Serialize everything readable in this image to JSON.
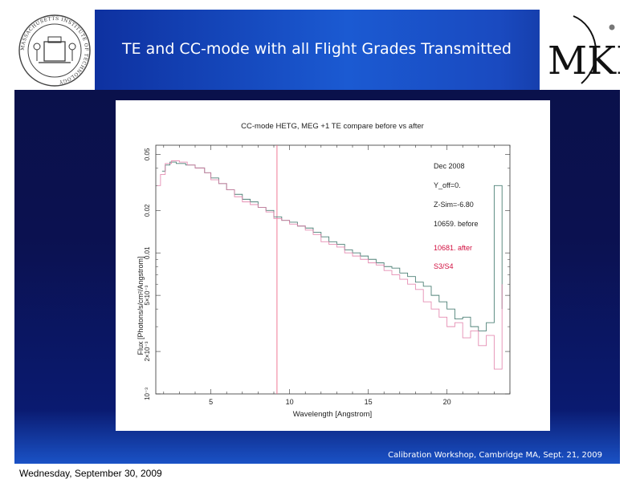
{
  "slide": {
    "title": "TE and CC-mode with all Flight Grades Transmitted",
    "footer": "Calibration Workshop, Cambridge MA, Sept. 21, 2009",
    "date_stamp": "Wednesday, September 30, 2009",
    "mit_seal_text": "MASSACHUSETTS INSTITUTE OF TECHNOLOGY",
    "mki_logo_text": "MKI"
  },
  "colors": {
    "before": "#2f6b5f",
    "after": "#e07aa6",
    "reference_line": "#ee6b8a",
    "after_label": "#d21040"
  },
  "chart_data": {
    "type": "line",
    "title": "CC-mode HETG, MEG +1 TE compare before vs after",
    "xlabel": "Wavelength [Angstrom]",
    "ylabel": "Flux [Photons/s/cm²/Angstrom]",
    "xlim": [
      1.5,
      24.0
    ],
    "ylim": [
      0.001,
      0.058
    ],
    "yscale": "log",
    "x_ticks": [
      5,
      10,
      15,
      20
    ],
    "y_ticks": [
      {
        "value": 0.001,
        "label": "10⁻³"
      },
      {
        "value": 0.002,
        "label": "2×10⁻³"
      },
      {
        "value": 0.005,
        "label": "5×10⁻³"
      },
      {
        "value": 0.01,
        "label": "0.01"
      },
      {
        "value": 0.02,
        "label": "0.02"
      },
      {
        "value": 0.05,
        "label": "0.05"
      }
    ],
    "reference_line_x": 9.2,
    "annotations": [
      "Dec 2008",
      "Y_off=0.",
      "Z-Sim=-6.80",
      "10659. before"
    ],
    "after_annotations": [
      "10681. after",
      "S3/S4"
    ],
    "series": [
      {
        "name": "10659. before",
        "x": [
          1.9,
          2.1,
          2.4,
          2.8,
          3.0,
          3.4,
          4.0,
          4.6,
          5.0,
          5.5,
          6.0,
          6.5,
          7.0,
          7.5,
          8.0,
          8.5,
          9.0,
          9.5,
          10.0,
          10.5,
          11.0,
          11.5,
          12.0,
          12.5,
          13.0,
          13.5,
          14.0,
          14.5,
          15.0,
          15.5,
          16.0,
          16.5,
          17.0,
          17.5,
          18.0,
          18.5,
          19.0,
          19.5,
          20.0,
          20.5,
          21.0,
          21.5,
          22.0,
          22.5,
          23.0,
          23.5
        ],
        "y": [
          0.038,
          0.042,
          0.044,
          0.043,
          0.043,
          0.042,
          0.04,
          0.037,
          0.034,
          0.031,
          0.028,
          0.026,
          0.024,
          0.023,
          0.021,
          0.02,
          0.018,
          0.017,
          0.0165,
          0.0155,
          0.015,
          0.014,
          0.013,
          0.012,
          0.0115,
          0.0105,
          0.01,
          0.0095,
          0.009,
          0.0085,
          0.008,
          0.0078,
          0.0072,
          0.0068,
          0.0062,
          0.0058,
          0.005,
          0.0045,
          0.004,
          0.0034,
          0.0035,
          0.003,
          0.0028,
          0.0032,
          0.03,
          0.004
        ]
      },
      {
        "name": "10681. after",
        "x": [
          1.6,
          1.8,
          2.1,
          2.5,
          3.0,
          3.5,
          4.0,
          4.6,
          5.0,
          5.5,
          6.0,
          6.5,
          7.0,
          7.5,
          8.0,
          8.5,
          9.0,
          9.5,
          10.0,
          10.5,
          11.0,
          11.5,
          12.0,
          12.5,
          13.0,
          13.5,
          14.0,
          14.5,
          15.0,
          15.5,
          16.0,
          16.5,
          17.0,
          17.5,
          18.0,
          18.5,
          19.0,
          19.5,
          20.0,
          20.5,
          21.0,
          21.5,
          22.0,
          22.5,
          23.0,
          23.5
        ],
        "y": [
          0.03,
          0.036,
          0.043,
          0.045,
          0.044,
          0.042,
          0.04,
          0.037,
          0.033,
          0.031,
          0.028,
          0.025,
          0.023,
          0.022,
          0.021,
          0.0195,
          0.0175,
          0.017,
          0.016,
          0.0155,
          0.0145,
          0.0135,
          0.012,
          0.0115,
          0.011,
          0.01,
          0.0095,
          0.009,
          0.0085,
          0.0082,
          0.0075,
          0.007,
          0.0065,
          0.006,
          0.0055,
          0.0045,
          0.004,
          0.0035,
          0.003,
          0.0032,
          0.0025,
          0.0028,
          0.0022,
          0.0026,
          0.0015,
          0.006
        ]
      }
    ]
  }
}
